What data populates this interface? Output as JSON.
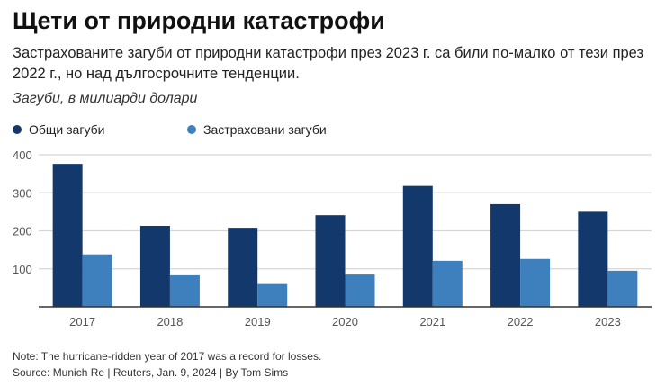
{
  "header": {
    "title": "Щети от природни катастрофи",
    "subtitle": "Застрахованите загуби от природни катастрофи през 2023 г. са били по-малко от тези през 2022 г., но над дългосрочните тенденции.",
    "unit_label": "Загуби, в милиарди долари"
  },
  "chart_data": {
    "type": "bar",
    "categories": [
      "2017",
      "2018",
      "2019",
      "2020",
      "2021",
      "2022",
      "2023"
    ],
    "series": [
      {
        "name": "Общи загуби",
        "color": "#13386b",
        "values": [
          376,
          213,
          208,
          241,
          318,
          270,
          250
        ]
      },
      {
        "name": "Застраховани загуби",
        "color": "#3d80bd",
        "values": [
          138,
          83,
          60,
          85,
          121,
          126,
          95
        ]
      }
    ],
    "yticks": [
      "100",
      "200",
      "300",
      "400"
    ],
    "ylim": [
      0,
      400
    ],
    "grid": true,
    "legend": "top-left"
  },
  "footer": {
    "note": "Note: The hurricane-ridden year of 2017 was a record for losses.",
    "source": "Source: Munich Re | Reuters, Jan. 9, 2024 | By Tom Sims"
  }
}
